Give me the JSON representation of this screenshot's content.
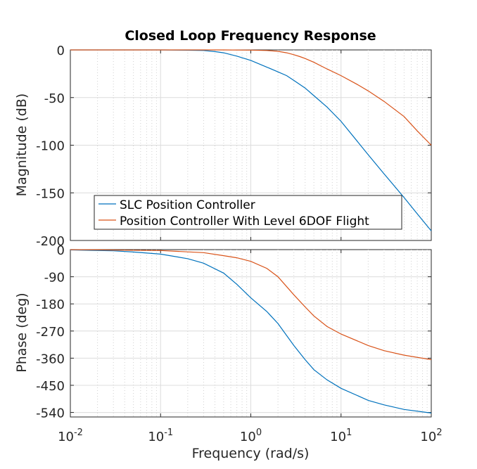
{
  "title": "Closed Loop Frequency Response",
  "colors": {
    "series1": "#0072BD",
    "series2": "#D95319",
    "axis": "#262626"
  },
  "chart_data": [
    {
      "type": "line",
      "panel": "magnitude",
      "xscale": "log",
      "xlim": [
        0.01,
        100
      ],
      "ylim": [
        -200,
        0
      ],
      "yticks": [
        0,
        -50,
        -100,
        -150,
        -200
      ],
      "ytick_labels": [
        "0",
        "-50",
        "-100",
        "-150",
        "-200"
      ],
      "ylabel": "Magnitude (dB)",
      "grid": true,
      "legend_position": "bottom-left",
      "series": [
        {
          "name": "SLC Position Controller",
          "x": [
            0.01,
            0.1,
            0.2,
            0.3,
            0.4,
            0.5,
            0.7,
            1.0,
            1.5,
            2.0,
            2.5,
            3.0,
            4.0,
            5.0,
            7.0,
            10,
            20,
            30,
            50,
            70,
            100
          ],
          "y": [
            0,
            0,
            -0.3,
            -0.6,
            -1.8,
            -3,
            -6.5,
            -11,
            -18,
            -23,
            -27,
            -32,
            -40,
            -48,
            -60,
            -75,
            -110,
            -130,
            -155,
            -172,
            -190
          ]
        },
        {
          "name": "Position Controller With Level 6DOF Flight",
          "x": [
            0.01,
            0.5,
            1.0,
            1.5,
            2.0,
            2.5,
            3.0,
            3.5,
            4.0,
            5.0,
            7.0,
            10,
            15,
            20,
            30,
            50,
            70,
            100
          ],
          "y": [
            0,
            0,
            -0.2,
            -0.6,
            -1.5,
            -3,
            -5,
            -7,
            -9,
            -13,
            -20,
            -27,
            -36,
            -43,
            -54,
            -70,
            -85,
            -100
          ]
        }
      ]
    },
    {
      "type": "line",
      "panel": "phase",
      "xscale": "log",
      "xlim": [
        0.01,
        100
      ],
      "ylim": [
        -555,
        0
      ],
      "yticks": [
        0,
        -90,
        -180,
        -270,
        -360,
        -450,
        -540
      ],
      "ytick_labels": [
        "0",
        "-90",
        "-180",
        "-270",
        "-360",
        "-450",
        "-540"
      ],
      "ylabel": "Phase (deg)",
      "xlabel": "Frequency  (rad/s)",
      "xticks": [
        0.01,
        0.1,
        1,
        10,
        100
      ],
      "xtick_labels": [
        {
          "base": "10",
          "exp": "-2"
        },
        {
          "base": "10",
          "exp": "-1"
        },
        {
          "base": "10",
          "exp": "0"
        },
        {
          "base": "10",
          "exp": "1"
        },
        {
          "base": "10",
          "exp": "2"
        }
      ],
      "grid": true,
      "series": [
        {
          "name": "SLC Position Controller",
          "x": [
            0.01,
            0.03,
            0.05,
            0.1,
            0.2,
            0.3,
            0.5,
            0.7,
            1.0,
            1.5,
            2.0,
            3.0,
            4.0,
            5.0,
            7.0,
            10,
            20,
            30,
            50,
            100
          ],
          "y": [
            -1,
            -4,
            -8,
            -15,
            -30,
            -45,
            -78,
            -115,
            -160,
            -205,
            -245,
            -318,
            -365,
            -398,
            -432,
            -460,
            -500,
            -515,
            -530,
            -542
          ]
        },
        {
          "name": "Position Controller With Level 6DOF Flight",
          "x": [
            0.01,
            0.1,
            0.3,
            0.5,
            0.7,
            1.0,
            1.5,
            2.0,
            3.0,
            4.0,
            5.0,
            7.0,
            10,
            20,
            30,
            50,
            100
          ],
          "y": [
            0,
            -3,
            -10,
            -20,
            -27,
            -39,
            -62,
            -90,
            -150,
            -190,
            -220,
            -255,
            -280,
            -318,
            -335,
            -350,
            -365
          ]
        }
      ]
    }
  ]
}
